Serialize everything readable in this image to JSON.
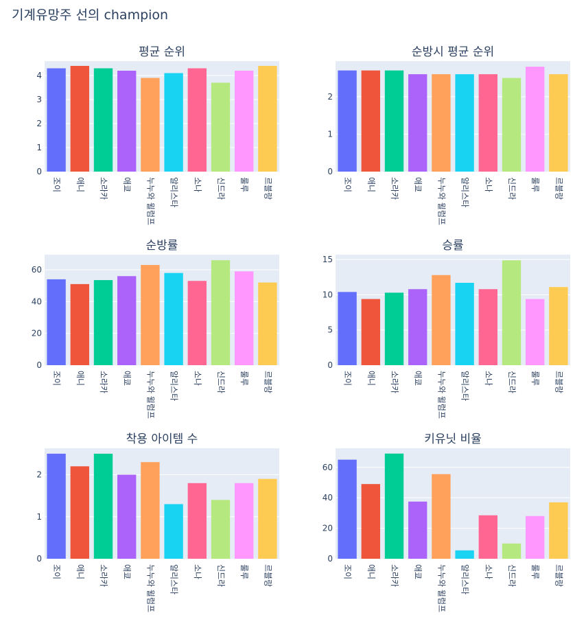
{
  "figure": {
    "title": "기계유망주 선의 champion"
  },
  "palette": [
    "#636efa",
    "#EF553B",
    "#00cc96",
    "#ab63fa",
    "#FFA15A",
    "#19d3f3",
    "#FF6692",
    "#B6E880",
    "#FF97FF",
    "#FECB52"
  ],
  "plot_background": "#e5ecf6",
  "chart_data": [
    {
      "type": "bar",
      "title": "평균 순위",
      "categories": [
        "조이",
        "애니",
        "소라카",
        "애쿄",
        "누누와 윌럼프",
        "알리스타",
        "소나",
        "신드라",
        "룰루",
        "르블랑"
      ],
      "values": [
        4.3,
        4.4,
        4.3,
        4.2,
        3.9,
        4.1,
        4.3,
        3.7,
        4.2,
        4.4
      ],
      "ylim": [
        0,
        4.6
      ],
      "yticks": [
        0,
        1,
        2,
        3,
        4
      ],
      "xlabel": "",
      "ylabel": ""
    },
    {
      "type": "bar",
      "title": "순방시 평균 순위",
      "categories": [
        "조이",
        "애니",
        "소라카",
        "애쿄",
        "누누와 윌럼프",
        "알리스타",
        "소나",
        "신드라",
        "룰루",
        "르블랑"
      ],
      "values": [
        2.7,
        2.7,
        2.7,
        2.6,
        2.6,
        2.6,
        2.6,
        2.5,
        2.8,
        2.6
      ],
      "ylim": [
        0,
        2.95
      ],
      "yticks": [
        0,
        1,
        2
      ],
      "xlabel": "",
      "ylabel": ""
    },
    {
      "type": "bar",
      "title": "순방률",
      "categories": [
        "조이",
        "애니",
        "소라카",
        "애쿄",
        "누누와 윌럼프",
        "알리스타",
        "소나",
        "신드라",
        "룰루",
        "르블랑"
      ],
      "values": [
        54,
        51,
        53.5,
        56,
        63,
        58,
        53,
        66,
        59,
        52
      ],
      "ylim": [
        0,
        69.5
      ],
      "yticks": [
        0,
        20,
        40,
        60
      ],
      "xlabel": "",
      "ylabel": ""
    },
    {
      "type": "bar",
      "title": "승률",
      "categories": [
        "조이",
        "애니",
        "소라카",
        "애쿄",
        "누누와 윌럼프",
        "알리스타",
        "소나",
        "신드라",
        "룰루",
        "르블랑"
      ],
      "values": [
        10.4,
        9.4,
        10.3,
        10.8,
        12.8,
        11.7,
        10.8,
        14.9,
        9.4,
        11.1
      ],
      "ylim": [
        0,
        15.7
      ],
      "yticks": [
        0,
        5,
        10,
        15
      ],
      "xlabel": "",
      "ylabel": ""
    },
    {
      "type": "bar",
      "title": "착용 아이템 수",
      "categories": [
        "조이",
        "애니",
        "소라카",
        "애쿄",
        "누누와 윌럼프",
        "알리스타",
        "소나",
        "신드라",
        "룰루",
        "르블랑"
      ],
      "values": [
        2.5,
        2.2,
        2.5,
        2.0,
        2.3,
        1.3,
        1.8,
        1.4,
        1.8,
        1.9
      ],
      "ylim": [
        0,
        2.63
      ],
      "yticks": [
        0,
        1,
        2
      ],
      "xlabel": "",
      "ylabel": ""
    },
    {
      "type": "bar",
      "title": "키유닛 비율",
      "categories": [
        "조이",
        "애니",
        "소라카",
        "애쿄",
        "누누와 윌럼프",
        "알리스타",
        "소나",
        "신드라",
        "룰루",
        "르블랑"
      ],
      "values": [
        65,
        49,
        69,
        37.5,
        55.5,
        5.5,
        28.5,
        10,
        28,
        37
      ],
      "ylim": [
        0,
        72.5
      ],
      "yticks": [
        0,
        20,
        40,
        60
      ],
      "xlabel": "",
      "ylabel": ""
    }
  ]
}
